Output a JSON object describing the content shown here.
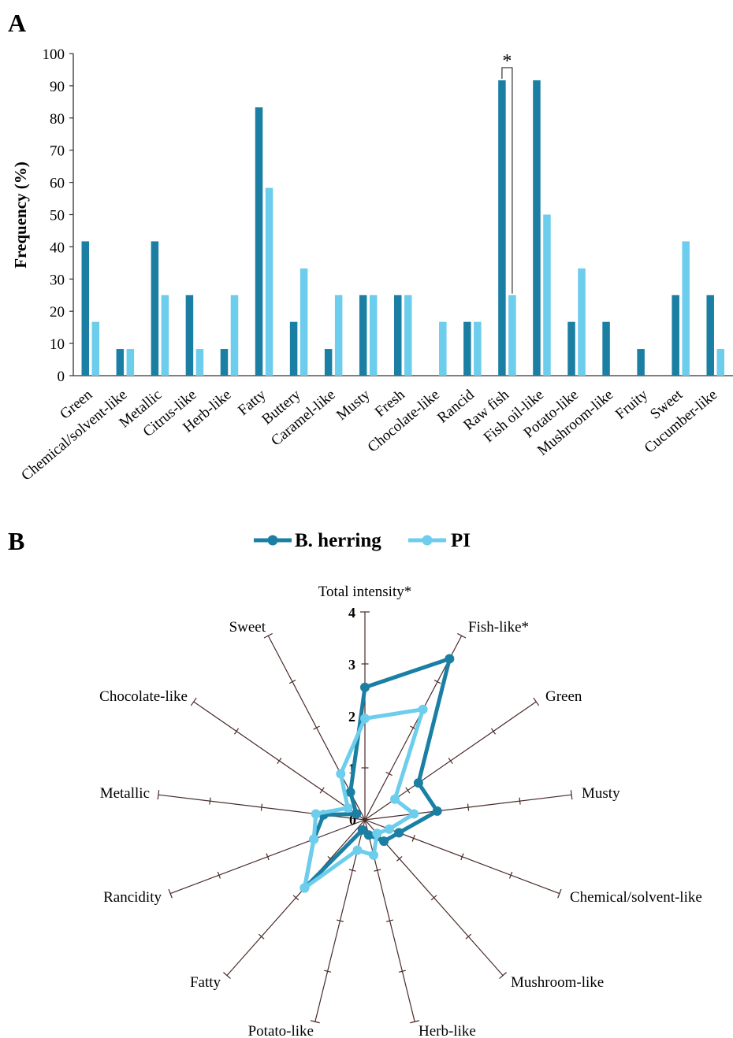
{
  "chart_data": [
    {
      "panel": "A",
      "type": "bar",
      "ylabel": "Frequency (%)",
      "ylim": [
        0,
        100
      ],
      "yticks": [
        "0",
        "10",
        "20",
        "30",
        "40",
        "50",
        "60",
        "70",
        "80",
        "90",
        "100"
      ],
      "categories": [
        "Green",
        "Chemical/solvent-like",
        "Metallic",
        "Citrus-like",
        "Herb-like",
        "Fatty",
        "Buttery",
        "Caramel-like",
        "Musty",
        "Fresh",
        "Chocolate-like",
        "Rancid",
        "Raw fish",
        "Fish oil-like",
        "Potato-like",
        "Mushroom-like",
        "Fruity",
        "Sweet",
        "Cucumber-like"
      ],
      "series": [
        {
          "name": "B. herring",
          "color": "#1a7fa3",
          "values": [
            41.7,
            8.3,
            41.7,
            25,
            8.3,
            83.3,
            16.7,
            8.3,
            25,
            25,
            0,
            16.7,
            91.7,
            91.7,
            16.7,
            16.7,
            8.3,
            25,
            25
          ]
        },
        {
          "name": "PI",
          "color": "#6ccdec",
          "values": [
            16.7,
            8.3,
            25,
            8.3,
            25,
            58.3,
            33.3,
            25,
            25,
            25,
            16.7,
            16.7,
            25,
            50,
            33.3,
            0,
            0,
            41.7,
            8.3
          ]
        }
      ],
      "annotations": [
        {
          "text": "*",
          "category": "Raw fish"
        }
      ],
      "grid": false
    },
    {
      "panel": "B",
      "type": "radar",
      "axes": [
        "Total intensity*",
        "Fish-like*",
        "Green",
        "Musty",
        "Chemical/solvent-like",
        "Mushroom-like",
        "Herb-like",
        "Potato-like",
        "Fatty",
        "Rancidity",
        "Metallic",
        "Chocolate-like",
        "Sweet"
      ],
      "rlim": [
        0,
        4
      ],
      "rticks": [
        "0",
        "1",
        "2",
        "3",
        "4"
      ],
      "series": [
        {
          "name": "B. herring",
          "color": "#1a7fa3",
          "values": [
            2.55,
            3.5,
            1.25,
            1.4,
            0.7,
            0.55,
            0.3,
            0.2,
            1.75,
            1.05,
            0.8,
            0.2,
            0.6
          ]
        },
        {
          "name": "PI",
          "color": "#6ccdec",
          "values": [
            1.95,
            2.4,
            0.7,
            0.95,
            0.5,
            0.35,
            0.7,
            0.6,
            1.75,
            1.05,
            0.95,
            0.4,
            1.0
          ]
        }
      ]
    }
  ],
  "labels": {
    "panel_a": "A",
    "panel_b": "B"
  },
  "legend": [
    {
      "name": "B. herring",
      "color": "#1a7fa3"
    },
    {
      "name": "PI",
      "color": "#6ccdec"
    }
  ]
}
